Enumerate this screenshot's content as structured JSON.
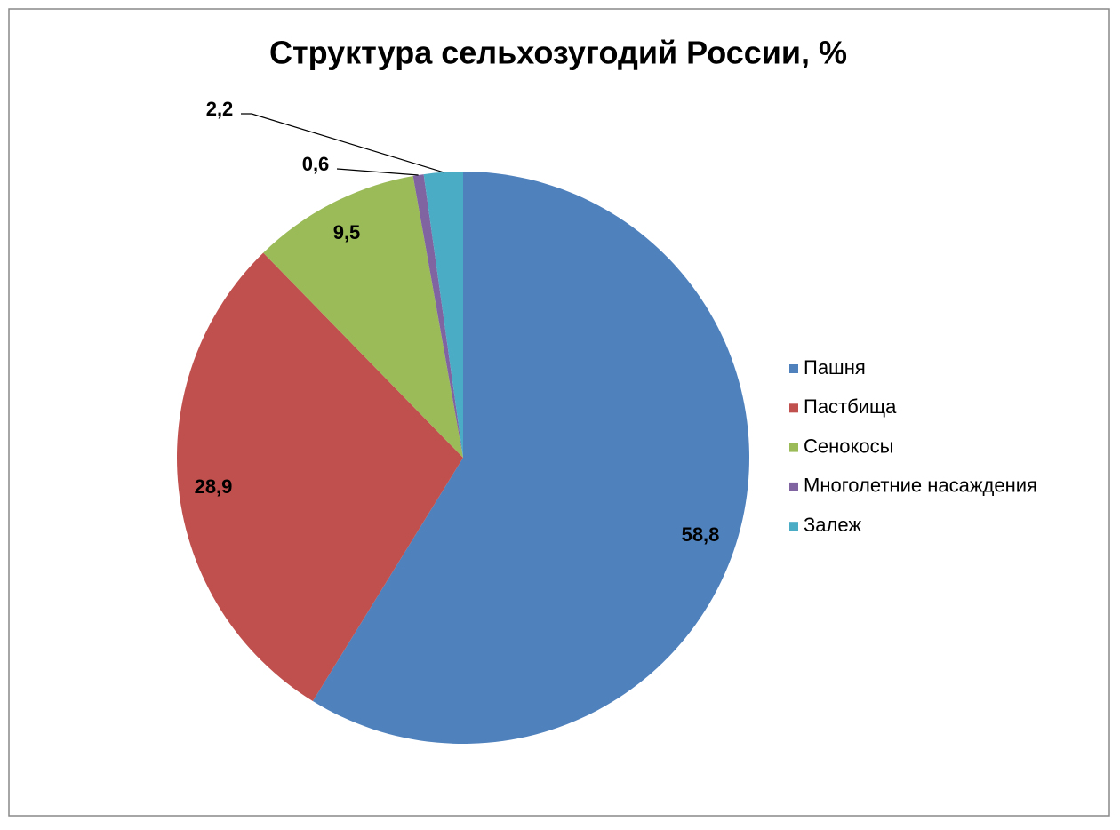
{
  "chart_data": {
    "type": "pie",
    "title": "Структура сельхозугодий России, %",
    "categories": [
      "Пашня",
      "Пастбища",
      "Сенокосы",
      "Многолетние насаждения",
      "Залеж"
    ],
    "values": [
      58.8,
      28.9,
      9.5,
      0.6,
      2.2
    ],
    "value_labels": [
      "58,8",
      "28,9",
      "9,5",
      "0,6",
      "2,2"
    ],
    "colors": [
      "#4f81bd",
      "#c0504d",
      "#9bbb59",
      "#8064a2",
      "#4bacc6"
    ],
    "legend": "right"
  }
}
